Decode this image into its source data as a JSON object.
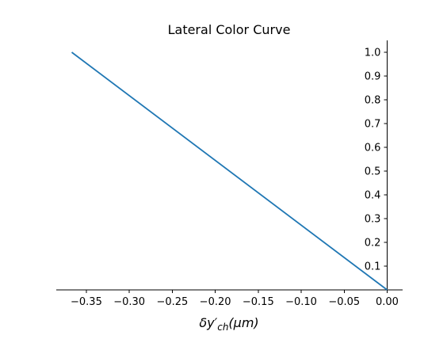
{
  "chart_data": {
    "type": "line",
    "title": "Lateral Color Curve",
    "xlabel": "δy′ch(μm)",
    "ylabel": "",
    "xlim": [
      -0.385,
      0.018
    ],
    "ylim": [
      0.0,
      1.05
    ],
    "xticks": [
      -0.35,
      -0.3,
      -0.25,
      -0.2,
      -0.15,
      -0.1,
      -0.05,
      0.0
    ],
    "xtick_labels": [
      "−0.35",
      "−0.30",
      "−0.25",
      "−0.20",
      "−0.15",
      "−0.10",
      "−0.05",
      "0.00"
    ],
    "yticks": [
      0.1,
      0.2,
      0.3,
      0.4,
      0.5,
      0.6,
      0.7,
      0.8,
      0.9,
      1.0
    ],
    "ytick_labels": [
      "0.1",
      "0.2",
      "0.3",
      "0.4",
      "0.5",
      "0.6",
      "0.7",
      "0.8",
      "0.9",
      "1.0"
    ],
    "grid": false,
    "spines": "y-axis at x=0 on right, x-axis at y=0 on bottom",
    "series": [
      {
        "color": "#1f77b4",
        "x": [
          -0.367,
          0.0
        ],
        "y": [
          1.0,
          0.0
        ]
      }
    ]
  }
}
